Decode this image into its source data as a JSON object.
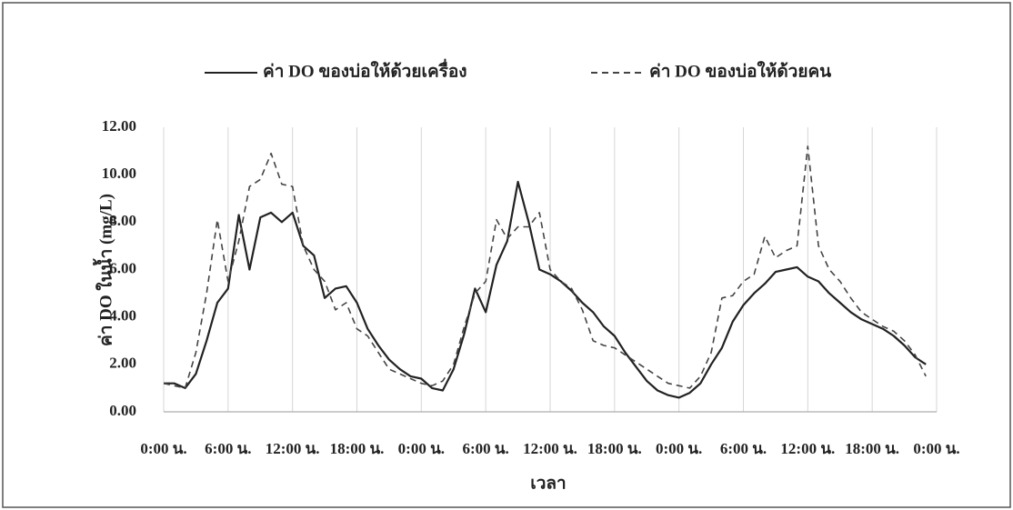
{
  "chart_data": {
    "type": "line",
    "x_label": "เวลา",
    "y_label": "ค่า DO ในน้ำ (mg/L)",
    "x": [
      0,
      1,
      2,
      3,
      4,
      5,
      6,
      7,
      8,
      9,
      10,
      11,
      12,
      13,
      14,
      15,
      16,
      17,
      18,
      19,
      20,
      21,
      22,
      23,
      24,
      25,
      26,
      27,
      28,
      29,
      30,
      31,
      32,
      33,
      34,
      35,
      36,
      37,
      38,
      39,
      40,
      41,
      42,
      43,
      44,
      45,
      46,
      47,
      48,
      49,
      50,
      51,
      52,
      53,
      54,
      55,
      56,
      57,
      58,
      59,
      60,
      61,
      62,
      63,
      64,
      65,
      66,
      67,
      68,
      69,
      70,
      71
    ],
    "series": [
      {
        "name": "ค่า DO ของบ่อให้ด้วยเครื่อง",
        "color": "#222222",
        "line_style": "solid",
        "values": [
          1.2,
          1.2,
          1.0,
          1.6,
          3.0,
          4.6,
          5.2,
          8.3,
          6.0,
          8.2,
          8.4,
          8.0,
          8.4,
          7.0,
          6.6,
          4.8,
          5.2,
          5.3,
          4.6,
          3.5,
          2.8,
          2.2,
          1.8,
          1.5,
          1.4,
          1.0,
          0.9,
          1.8,
          3.3,
          5.2,
          4.2,
          6.2,
          7.2,
          9.7,
          8.0,
          6.0,
          5.8,
          5.5,
          5.1,
          4.6,
          4.2,
          3.6,
          3.2,
          2.5,
          1.9,
          1.3,
          0.9,
          0.7,
          0.6,
          0.8,
          1.2,
          2.0,
          2.7,
          3.8,
          4.5,
          5.0,
          5.4,
          5.9,
          6.0,
          6.1,
          5.7,
          5.5,
          5.0,
          4.6,
          4.2,
          3.9,
          3.7,
          3.5,
          3.2,
          2.8,
          2.3,
          2.0
        ]
      },
      {
        "name": "ค่า DO ของบ่อให้ด้วยคน",
        "color": "#444444",
        "line_style": "dashed",
        "values": [
          1.2,
          1.1,
          1.0,
          2.5,
          5.0,
          8.1,
          5.5,
          7.2,
          9.5,
          9.8,
          10.9,
          9.6,
          9.5,
          7.0,
          6.0,
          5.5,
          4.3,
          4.6,
          3.5,
          3.2,
          2.5,
          1.8,
          1.6,
          1.4,
          1.2,
          1.1,
          1.3,
          2.0,
          3.6,
          5.0,
          5.5,
          8.1,
          7.3,
          7.8,
          7.8,
          8.4,
          6.0,
          5.5,
          5.2,
          4.3,
          3.0,
          2.8,
          2.7,
          2.4,
          2.1,
          1.8,
          1.5,
          1.2,
          1.1,
          1.0,
          1.5,
          2.5,
          4.8,
          4.9,
          5.5,
          5.8,
          7.4,
          6.5,
          6.8,
          7.0,
          11.2,
          7.0,
          6.0,
          5.5,
          4.8,
          4.2,
          3.9,
          3.6,
          3.4,
          3.0,
          2.4,
          1.5
        ]
      }
    ],
    "xlim": [
      0,
      72
    ],
    "xticks": [
      {
        "value": 0,
        "label": "0:00 น."
      },
      {
        "value": 6,
        "label": "6:00 น."
      },
      {
        "value": 12,
        "label": "12:00 น."
      },
      {
        "value": 18,
        "label": "18:00 น."
      },
      {
        "value": 24,
        "label": "0:00 น."
      },
      {
        "value": 30,
        "label": "6:00 น."
      },
      {
        "value": 36,
        "label": "12:00 น."
      },
      {
        "value": 42,
        "label": "18:00 น."
      },
      {
        "value": 48,
        "label": "0:00 น."
      },
      {
        "value": 54,
        "label": "6:00 น."
      },
      {
        "value": 60,
        "label": "12:00 น."
      },
      {
        "value": 66,
        "label": "18:00 น."
      },
      {
        "value": 72,
        "label": "0:00 น."
      }
    ],
    "ylim": [
      0,
      12
    ],
    "yticks": [
      {
        "value": 0,
        "label": "0.00"
      },
      {
        "value": 2,
        "label": "2.00"
      },
      {
        "value": 4,
        "label": "4.00"
      },
      {
        "value": 6,
        "label": "6.00"
      },
      {
        "value": 8,
        "label": "8.00"
      },
      {
        "value": 10,
        "label": "10.00"
      },
      {
        "value": 12,
        "label": "12.00"
      }
    ],
    "grid": "x",
    "legend": "top"
  }
}
